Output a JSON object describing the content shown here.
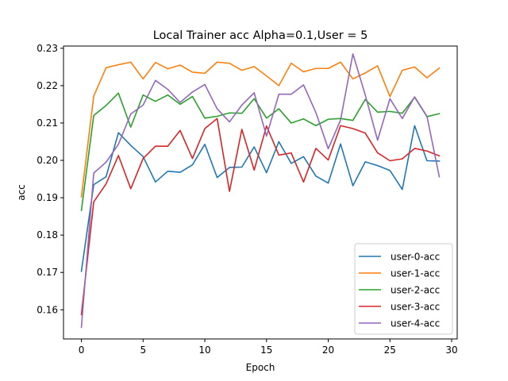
{
  "chart_data": {
    "type": "line",
    "title": "Local Trainer acc Alpha=0.1,User = 5",
    "xlabel": "Epoch",
    "ylabel": "acc",
    "xlim": [
      -1.45,
      30.45
    ],
    "ylim": [
      0.1522,
      0.2306
    ],
    "xticks": [
      0,
      5,
      10,
      15,
      20,
      25,
      30
    ],
    "yticks": [
      0.16,
      0.17,
      0.18,
      0.19,
      0.2,
      0.21,
      0.22,
      0.23
    ],
    "ytick_labels": [
      "0.16",
      "0.17",
      "0.18",
      "0.19",
      "0.20",
      "0.21",
      "0.22",
      "0.23"
    ],
    "legend_position": "lower-right",
    "grid": false,
    "x": [
      0,
      1,
      2,
      3,
      4,
      5,
      6,
      7,
      8,
      9,
      10,
      11,
      12,
      13,
      14,
      15,
      16,
      17,
      18,
      19,
      20,
      21,
      22,
      23,
      24,
      25,
      26,
      27,
      28,
      29
    ],
    "series": [
      {
        "name": "user-0-acc",
        "color": "#1f77b4",
        "values": [
          0.1703,
          0.1935,
          0.1956,
          0.2074,
          0.204,
          0.201,
          0.1942,
          0.1971,
          0.1968,
          0.1988,
          0.2043,
          0.1954,
          0.1981,
          0.1982,
          0.2036,
          0.1967,
          0.205,
          0.1992,
          0.201,
          0.1958,
          0.1939,
          0.2044,
          0.1932,
          0.1996,
          0.1986,
          0.1973,
          0.1922,
          0.2093,
          0.1999,
          0.1998
        ]
      },
      {
        "name": "user-1-acc",
        "color": "#ff7f0e",
        "values": [
          0.1902,
          0.2172,
          0.2248,
          0.2256,
          0.2263,
          0.2218,
          0.2262,
          0.2245,
          0.2255,
          0.2236,
          0.2233,
          0.2263,
          0.226,
          0.2241,
          0.2251,
          0.2226,
          0.22,
          0.226,
          0.2237,
          0.2246,
          0.2246,
          0.2263,
          0.2218,
          0.2234,
          0.2253,
          0.2171,
          0.2241,
          0.225,
          0.2221,
          0.2247
        ]
      },
      {
        "name": "user-2-acc",
        "color": "#2ca02c",
        "values": [
          0.1866,
          0.212,
          0.2147,
          0.218,
          0.2089,
          0.2175,
          0.2158,
          0.2175,
          0.215,
          0.2171,
          0.2113,
          0.2118,
          0.2127,
          0.2126,
          0.2165,
          0.2113,
          0.2138,
          0.21,
          0.2111,
          0.2093,
          0.211,
          0.2112,
          0.2107,
          0.2163,
          0.2129,
          0.2131,
          0.2126,
          0.2169,
          0.2117,
          0.2125
        ]
      },
      {
        "name": "user-3-acc",
        "color": "#d62728",
        "values": [
          0.1587,
          0.1889,
          0.1937,
          0.2013,
          0.1924,
          0.2005,
          0.2038,
          0.2038,
          0.208,
          0.2005,
          0.2085,
          0.2112,
          0.1917,
          0.2083,
          0.1974,
          0.2092,
          0.2014,
          0.202,
          0.1942,
          0.2032,
          0.2001,
          0.2093,
          0.2085,
          0.2073,
          0.202,
          0.1999,
          0.2004,
          0.2032,
          0.2025,
          0.2012
        ]
      },
      {
        "name": "user-4-acc",
        "color": "#9467bd",
        "values": [
          0.1553,
          0.1966,
          0.1995,
          0.2043,
          0.2124,
          0.2148,
          0.2214,
          0.219,
          0.2155,
          0.2183,
          0.2203,
          0.2138,
          0.2103,
          0.2148,
          0.2181,
          0.2065,
          0.2177,
          0.2177,
          0.2202,
          0.2128,
          0.2031,
          0.2108,
          0.2285,
          0.2175,
          0.2054,
          0.2165,
          0.2112,
          0.217,
          0.2118,
          0.1956
        ]
      }
    ]
  }
}
